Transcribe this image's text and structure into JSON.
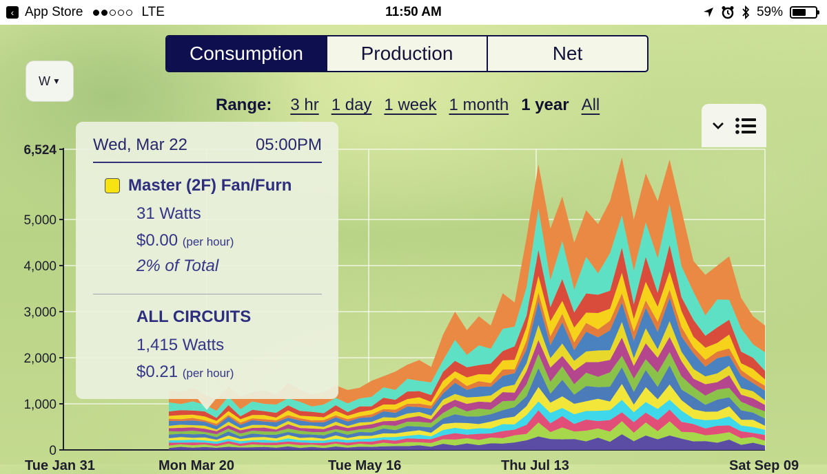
{
  "status_bar": {
    "back_app": "App Store",
    "carrier": "LTE",
    "time": "11:50 AM",
    "battery": "59%",
    "battery_level": 0.59,
    "signal_bars": 2
  },
  "tabs": [
    {
      "label": "Consumption",
      "active": true
    },
    {
      "label": "Production",
      "active": false
    },
    {
      "label": "Net",
      "active": false
    }
  ],
  "unit_button": {
    "label": "W"
  },
  "range": {
    "label": "Range:",
    "options": [
      "3 hr",
      "1 day",
      "1 week",
      "1 month",
      "1 year",
      "All"
    ],
    "selected": "1 year"
  },
  "tooltip": {
    "date": "Wed, Mar 22",
    "time": "05:00PM",
    "circuit_name": "Master (2F) Fan/Furn",
    "circuit_color": "#f7e312",
    "circuit_watts": "31 Watts",
    "circuit_cost": "$0.00",
    "circuit_cost_unit": "(per hour)",
    "circuit_share": "2% of Total",
    "all_label": "ALL CIRCUITS",
    "all_watts": "1,415 Watts",
    "all_cost": "$0.21",
    "all_cost_unit": "(per hour)"
  },
  "x_labels": [
    "Tue Jan 31",
    "Mon Mar 20",
    "Tue May 16",
    "Thu Jul 13",
    "Sat Sep 09"
  ],
  "chart_data": {
    "type": "area",
    "stacked": true,
    "ylim": [
      0,
      6524
    ],
    "yticks": [
      0,
      1000,
      2000,
      3000,
      4000,
      5000,
      6524
    ],
    "ytick_labels": [
      "0",
      "1,000",
      "2,000",
      "3,000",
      "4,000",
      "5,000",
      "6,524"
    ],
    "series_colors": [
      "#5a4da3",
      "#a7d84c",
      "#e14f79",
      "#3fd7ea",
      "#f3e63a",
      "#4b7bb8",
      "#8bc34a",
      "#b4468e",
      "#e8d82c",
      "#4a82c0",
      "#e27b3b",
      "#f6d31a",
      "#d94b3a",
      "#5ee0c5",
      "#e98943"
    ],
    "series_weights": [
      0.045,
      0.04,
      0.04,
      0.04,
      0.045,
      0.055,
      0.05,
      0.055,
      0.045,
      0.07,
      0.035,
      0.06,
      0.075,
      0.13,
      0.2
    ],
    "x_frac": [
      0.0,
      0.02,
      0.04,
      0.06,
      0.08,
      0.1,
      0.12,
      0.14,
      0.16,
      0.18,
      0.2,
      0.22,
      0.24,
      0.26,
      0.28,
      0.3,
      0.32,
      0.34,
      0.36,
      0.38,
      0.4,
      0.42,
      0.44,
      0.46,
      0.48,
      0.5,
      0.52,
      0.54,
      0.56,
      0.58,
      0.6,
      0.62,
      0.64,
      0.66,
      0.68,
      0.7,
      0.72,
      0.74,
      0.76,
      0.78,
      0.8,
      0.82,
      0.84,
      0.86,
      0.88,
      0.9,
      0.92,
      0.94,
      0.96,
      0.98,
      1.0
    ],
    "totals": [
      1300,
      1250,
      1350,
      1200,
      1100,
      1380,
      1150,
      1250,
      1300,
      1200,
      1450,
      1300,
      1200,
      1250,
      1400,
      1300,
      1350,
      1500,
      1600,
      1700,
      1850,
      1950,
      1800,
      2500,
      3000,
      2600,
      2900,
      2700,
      3400,
      3200,
      4600,
      6200,
      4800,
      5500,
      4500,
      5200,
      4900,
      5400,
      6350,
      5000,
      6000,
      5400,
      6300,
      5200,
      4100,
      3800,
      4000,
      4200,
      3300,
      2900,
      2700
    ]
  }
}
